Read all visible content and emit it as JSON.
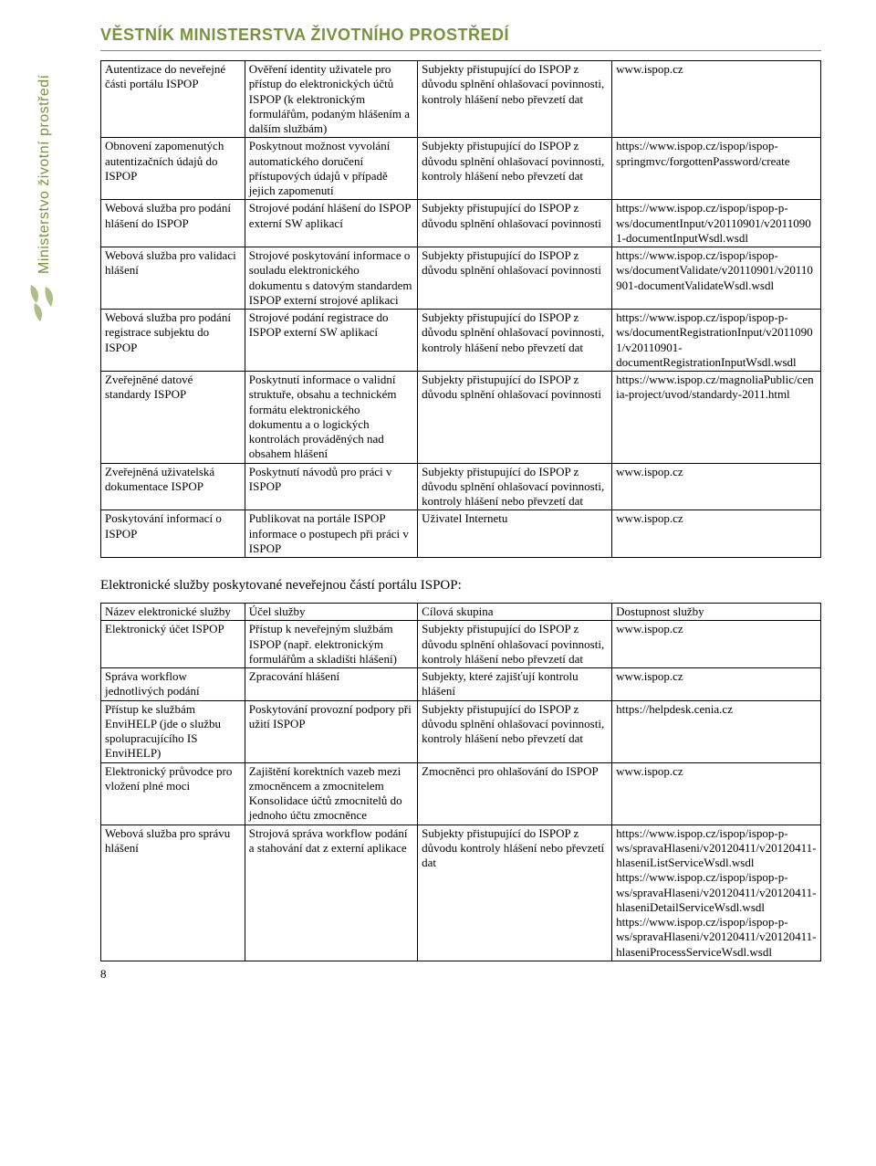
{
  "header": {
    "title": "VĚSTNÍK MINISTERSTVA ŽIVOTNÍHO PROSTŘEDÍ"
  },
  "sidebar": {
    "label": "Ministerstvo životní prostředí"
  },
  "pageNumber": "8",
  "colors": {
    "accent": "#78933c",
    "border": "#000000",
    "background": "#ffffff",
    "text": "#000000"
  },
  "table1": {
    "rows": [
      {
        "c1": "Autentizace do neveřejné části portálu ISPOP",
        "c2": "Ověření identity uživatele pro přístup do elektronických účtů ISPOP (k elektronickým formulářům, podaným hlášením a dalším službám)",
        "c3": "Subjekty přistupující do ISPOP z důvodu splnění ohlašovací povinnosti, kontroly hlášení nebo převzetí dat",
        "c4": "www.ispop.cz"
      },
      {
        "c1": "Obnovení zapomenutých autentizačních údajů do ISPOP",
        "c2": "Poskytnout možnost vyvolání automatického doručení přístupových údajů v případě jejich zapomenutí",
        "c3": "Subjekty přistupující do ISPOP z důvodu splnění ohlašovací povinnosti, kontroly hlášení nebo převzetí dat",
        "c4": "https://www.ispop.cz/ispop/ispop-springmvc/forgottenPassword/create"
      },
      {
        "c1": "Webová služba pro podání hlášení do ISPOP",
        "c2": "Strojové podání hlášení do ISPOP externí SW aplikací",
        "c3": "Subjekty přistupující do ISPOP z důvodu splnění ohlašovací povinnosti",
        "c4": "https://www.ispop.cz/ispop/ispop-p-ws/documentInput/v20110901/v20110901-documentInputWsdl.wsdl"
      },
      {
        "c1": "Webová služba pro validaci hlášení",
        "c2": "Strojové poskytování informace o souladu elektronického dokumentu s datovým standardem ISPOP externí strojové aplikaci",
        "c3": "Subjekty přistupující do ISPOP z důvodu splnění ohlašovací povinnosti",
        "c4": "https://www.ispop.cz/ispop/ispop-ws/documentValidate/v20110901/v20110901-documentValidateWsdl.wsdl"
      },
      {
        "c1": "Webová služba pro podání registrace subjektu do ISPOP",
        "c2": "Strojové podání registrace do ISPOP externí SW aplikací",
        "c3": "Subjekty přistupující do ISPOP z důvodu splnění ohlašovací povinnosti, kontroly hlášení nebo převzetí dat",
        "c4": "https://www.ispop.cz/ispop/ispop-p-ws/documentRegistrationInput/v20110901/v20110901-documentRegistrationInputWsdl.wsdl"
      },
      {
        "c1": "Zveřejněné datové standardy ISPOP",
        "c2": "Poskytnutí informace o validní struktuře, obsahu a technickém formátu elektronického dokumentu a o logických kontrolách prováděných nad obsahem hlášení",
        "c3": "Subjekty přistupující do ISPOP z důvodu splnění ohlašovací povinnosti",
        "c4": "https://www.ispop.cz/magnoliaPublic/cenia-project/uvod/standardy-2011.html"
      },
      {
        "c1": "Zveřejněná uživatelská dokumentace ISPOP",
        "c2": "Poskytnutí návodů pro práci v ISPOP",
        "c3": "Subjekty přistupující do ISPOP z důvodu splnění ohlašovací povinnosti, kontroly hlášení nebo převzetí dat",
        "c4": "www.ispop.cz"
      },
      {
        "c1": "Poskytování informací o ISPOP",
        "c2": "Publikovat na portále ISPOP informace o postupech při práci v ISPOP",
        "c3": "Uživatel Internetu",
        "c4": "www.ispop.cz"
      }
    ]
  },
  "caption2": "Elektronické služby poskytované neveřejnou částí portálu ISPOP:",
  "table2": {
    "header": {
      "c1": "Název elektronické služby",
      "c2": "Účel služby",
      "c3": "Cílová skupina",
      "c4": "Dostupnost služby"
    },
    "rows": [
      {
        "c1": "Elektronický účet ISPOP",
        "c2": "Přístup k neveřejným službám ISPOP (např. elektronickým formulářům a skladišti hlášení)",
        "c3": "Subjekty přistupující do ISPOP z důvodu splnění ohlašovací povinnosti, kontroly hlášení nebo převzetí dat",
        "c4": "www.ispop.cz"
      },
      {
        "c1": "Správa workflow jednotlivých podání",
        "c2": "Zpracování hlášení",
        "c3": "Subjekty, které zajišťují kontrolu hlášení",
        "c4": "www.ispop.cz"
      },
      {
        "c1": "Přístup ke službám EnviHELP (jde o službu spolupracujícího IS EnviHELP)",
        "c2": "Poskytování provozní podpory při užití ISPOP",
        "c3": "Subjekty přistupující do ISPOP z důvodu splnění ohlašovací povinnosti, kontroly hlášení nebo převzetí dat",
        "c4": "https://helpdesk.cenia.cz"
      },
      {
        "c1": "Elektronický průvodce pro vložení plné moci",
        "c2": "Zajištění korektních vazeb mezi zmocněncem a zmocnitelem\nKonsolidace účtů zmocnitelů do jednoho účtu zmocněnce",
        "c3": "Zmocněnci pro ohlašování do ISPOP",
        "c4": "www.ispop.cz"
      },
      {
        "c1": "Webová služba pro správu hlášení",
        "c2": "Strojová správa workflow podání a stahování dat z externí aplikace",
        "c3": "Subjekty přistupující do ISPOP z důvodu kontroly hlášení nebo převzetí dat",
        "c4": "https://www.ispop.cz/ispop/ispop-p-ws/spravaHlaseni/v20120411/v20120411-hlaseniListServiceWsdl.wsdl\nhttps://www.ispop.cz/ispop/ispop-p-ws/spravaHlaseni/v20120411/v20120411-hlaseniDetailServiceWsdl.wsdl\nhttps://www.ispop.cz/ispop/ispop-p-ws/spravaHlaseni/v20120411/v20120411-hlaseniProcessServiceWsdl.wsdl"
      }
    ]
  }
}
